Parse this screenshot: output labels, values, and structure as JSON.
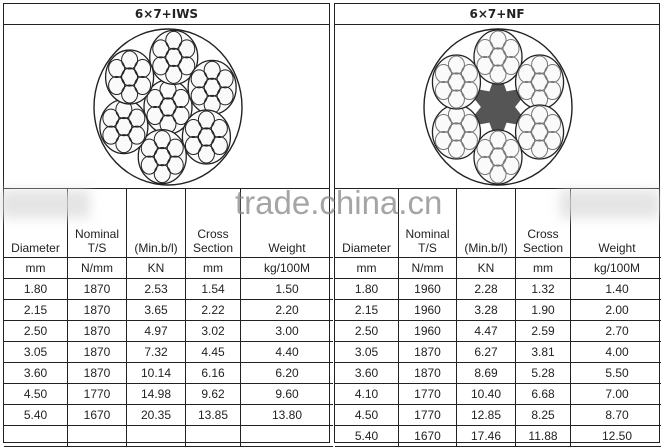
{
  "watermark": "trade.china.cn",
  "headers": [
    "Diameter",
    "Nominal T/S",
    "(Min.b/l)",
    "Cross Section",
    "Weight"
  ],
  "units": [
    "mm",
    "N/mm",
    "KN",
    "mm",
    "kg/100M"
  ],
  "left": {
    "title": "6×7+IWS",
    "core": "independent wire strand",
    "rows": [
      [
        "1.80",
        "1870",
        "2.53",
        "1.54",
        "1.50"
      ],
      [
        "2.15",
        "1870",
        "3.65",
        "2.22",
        "2.20"
      ],
      [
        "2.50",
        "1870",
        "4.97",
        "3.02",
        "3.00"
      ],
      [
        "3.05",
        "1870",
        "7.32",
        "4.45",
        "4.40"
      ],
      [
        "3.60",
        "1870",
        "10.14",
        "6.16",
        "6.20"
      ],
      [
        "4.50",
        "1770",
        "14.98",
        "9.62",
        "9.60"
      ],
      [
        "5.40",
        "1670",
        "20.35",
        "13.85",
        "13.80"
      ],
      [
        "",
        "",
        "",
        "",
        ""
      ]
    ]
  },
  "right": {
    "title": "6×7+NF",
    "core": "natural fiber",
    "rows": [
      [
        "1.80",
        "1960",
        "2.28",
        "1.32",
        "1.40"
      ],
      [
        "2.15",
        "1960",
        "3.28",
        "1.90",
        "2.00"
      ],
      [
        "2.50",
        "1960",
        "4.47",
        "2.59",
        "2.70"
      ],
      [
        "3.05",
        "1870",
        "6.27",
        "3.81",
        "4.00"
      ],
      [
        "3.60",
        "1870",
        "8.69",
        "5.28",
        "5.50"
      ],
      [
        "4.10",
        "1770",
        "10.40",
        "6.68",
        "7.00"
      ],
      [
        "4.50",
        "1770",
        "12.85",
        "8.25",
        "8.70"
      ],
      [
        "5.40",
        "1670",
        "17.46",
        "11.88",
        "12.50"
      ]
    ]
  }
}
